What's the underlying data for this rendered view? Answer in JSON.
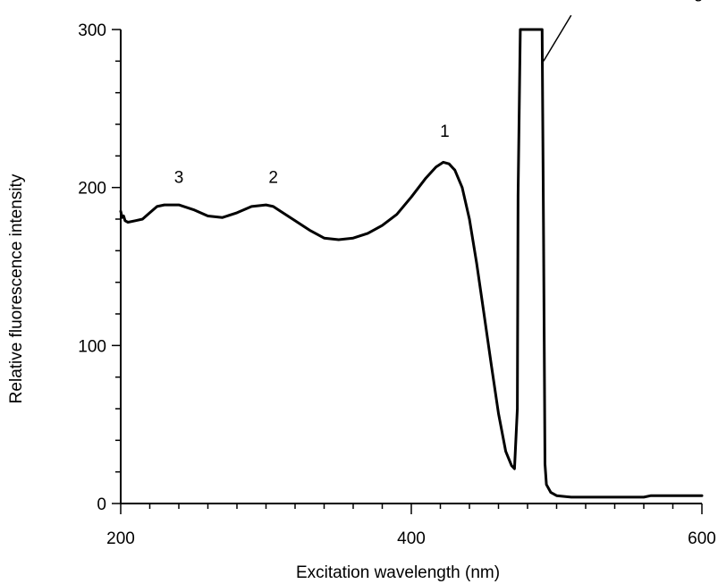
{
  "chart_data": {
    "type": "line",
    "title": "",
    "xlabel": "Excitation wavelength  (nm)",
    "ylabel": "Relative fluorescence intensity",
    "xlim": [
      200,
      600
    ],
    "ylim": [
      0,
      300
    ],
    "x_ticks": [
      200,
      400,
      600
    ],
    "y_ticks": [
      0,
      100,
      200,
      300
    ],
    "grid": false,
    "legend": "none",
    "line_color": "#000000",
    "series": [
      {
        "points": [
          [
            200,
            185
          ],
          [
            201,
            181
          ],
          [
            202,
            182
          ],
          [
            203,
            179
          ],
          [
            205,
            178
          ],
          [
            210,
            179
          ],
          [
            215,
            180
          ],
          [
            220,
            184
          ],
          [
            225,
            188
          ],
          [
            230,
            189
          ],
          [
            240,
            189
          ],
          [
            250,
            186
          ],
          [
            260,
            182
          ],
          [
            270,
            181
          ],
          [
            280,
            184
          ],
          [
            290,
            188
          ],
          [
            300,
            189
          ],
          [
            305,
            188
          ],
          [
            310,
            185
          ],
          [
            320,
            179
          ],
          [
            330,
            173
          ],
          [
            340,
            168
          ],
          [
            350,
            167
          ],
          [
            360,
            168
          ],
          [
            370,
            171
          ],
          [
            380,
            176
          ],
          [
            390,
            183
          ],
          [
            400,
            194
          ],
          [
            410,
            206
          ],
          [
            417,
            213
          ],
          [
            422,
            216
          ],
          [
            426,
            215
          ],
          [
            430,
            211
          ],
          [
            435,
            200
          ],
          [
            440,
            180
          ],
          [
            445,
            152
          ],
          [
            450,
            120
          ],
          [
            455,
            88
          ],
          [
            460,
            57
          ],
          [
            465,
            33
          ],
          [
            469,
            24
          ],
          [
            471,
            22
          ],
          [
            473,
            60
          ],
          [
            473.5,
            195
          ],
          [
            475,
            300
          ],
          [
            490,
            300
          ],
          [
            491,
            170
          ],
          [
            492,
            25
          ],
          [
            493,
            12
          ],
          [
            496,
            7
          ],
          [
            500,
            5
          ],
          [
            510,
            4
          ],
          [
            550,
            4
          ],
          [
            560,
            4
          ],
          [
            565,
            5
          ],
          [
            600,
            5
          ]
        ]
      }
    ],
    "annotations": [
      {
        "text": "1",
        "x": 423,
        "y": 232
      },
      {
        "text": "2",
        "x": 305,
        "y": 203
      },
      {
        "text": "3",
        "x": 240,
        "y": 203
      },
      {
        "text": "Scattered Light",
        "x": 532,
        "y": 320
      }
    ],
    "leader_line": {
      "from": [
        491,
        280
      ],
      "to": [
        510,
        309
      ]
    }
  }
}
